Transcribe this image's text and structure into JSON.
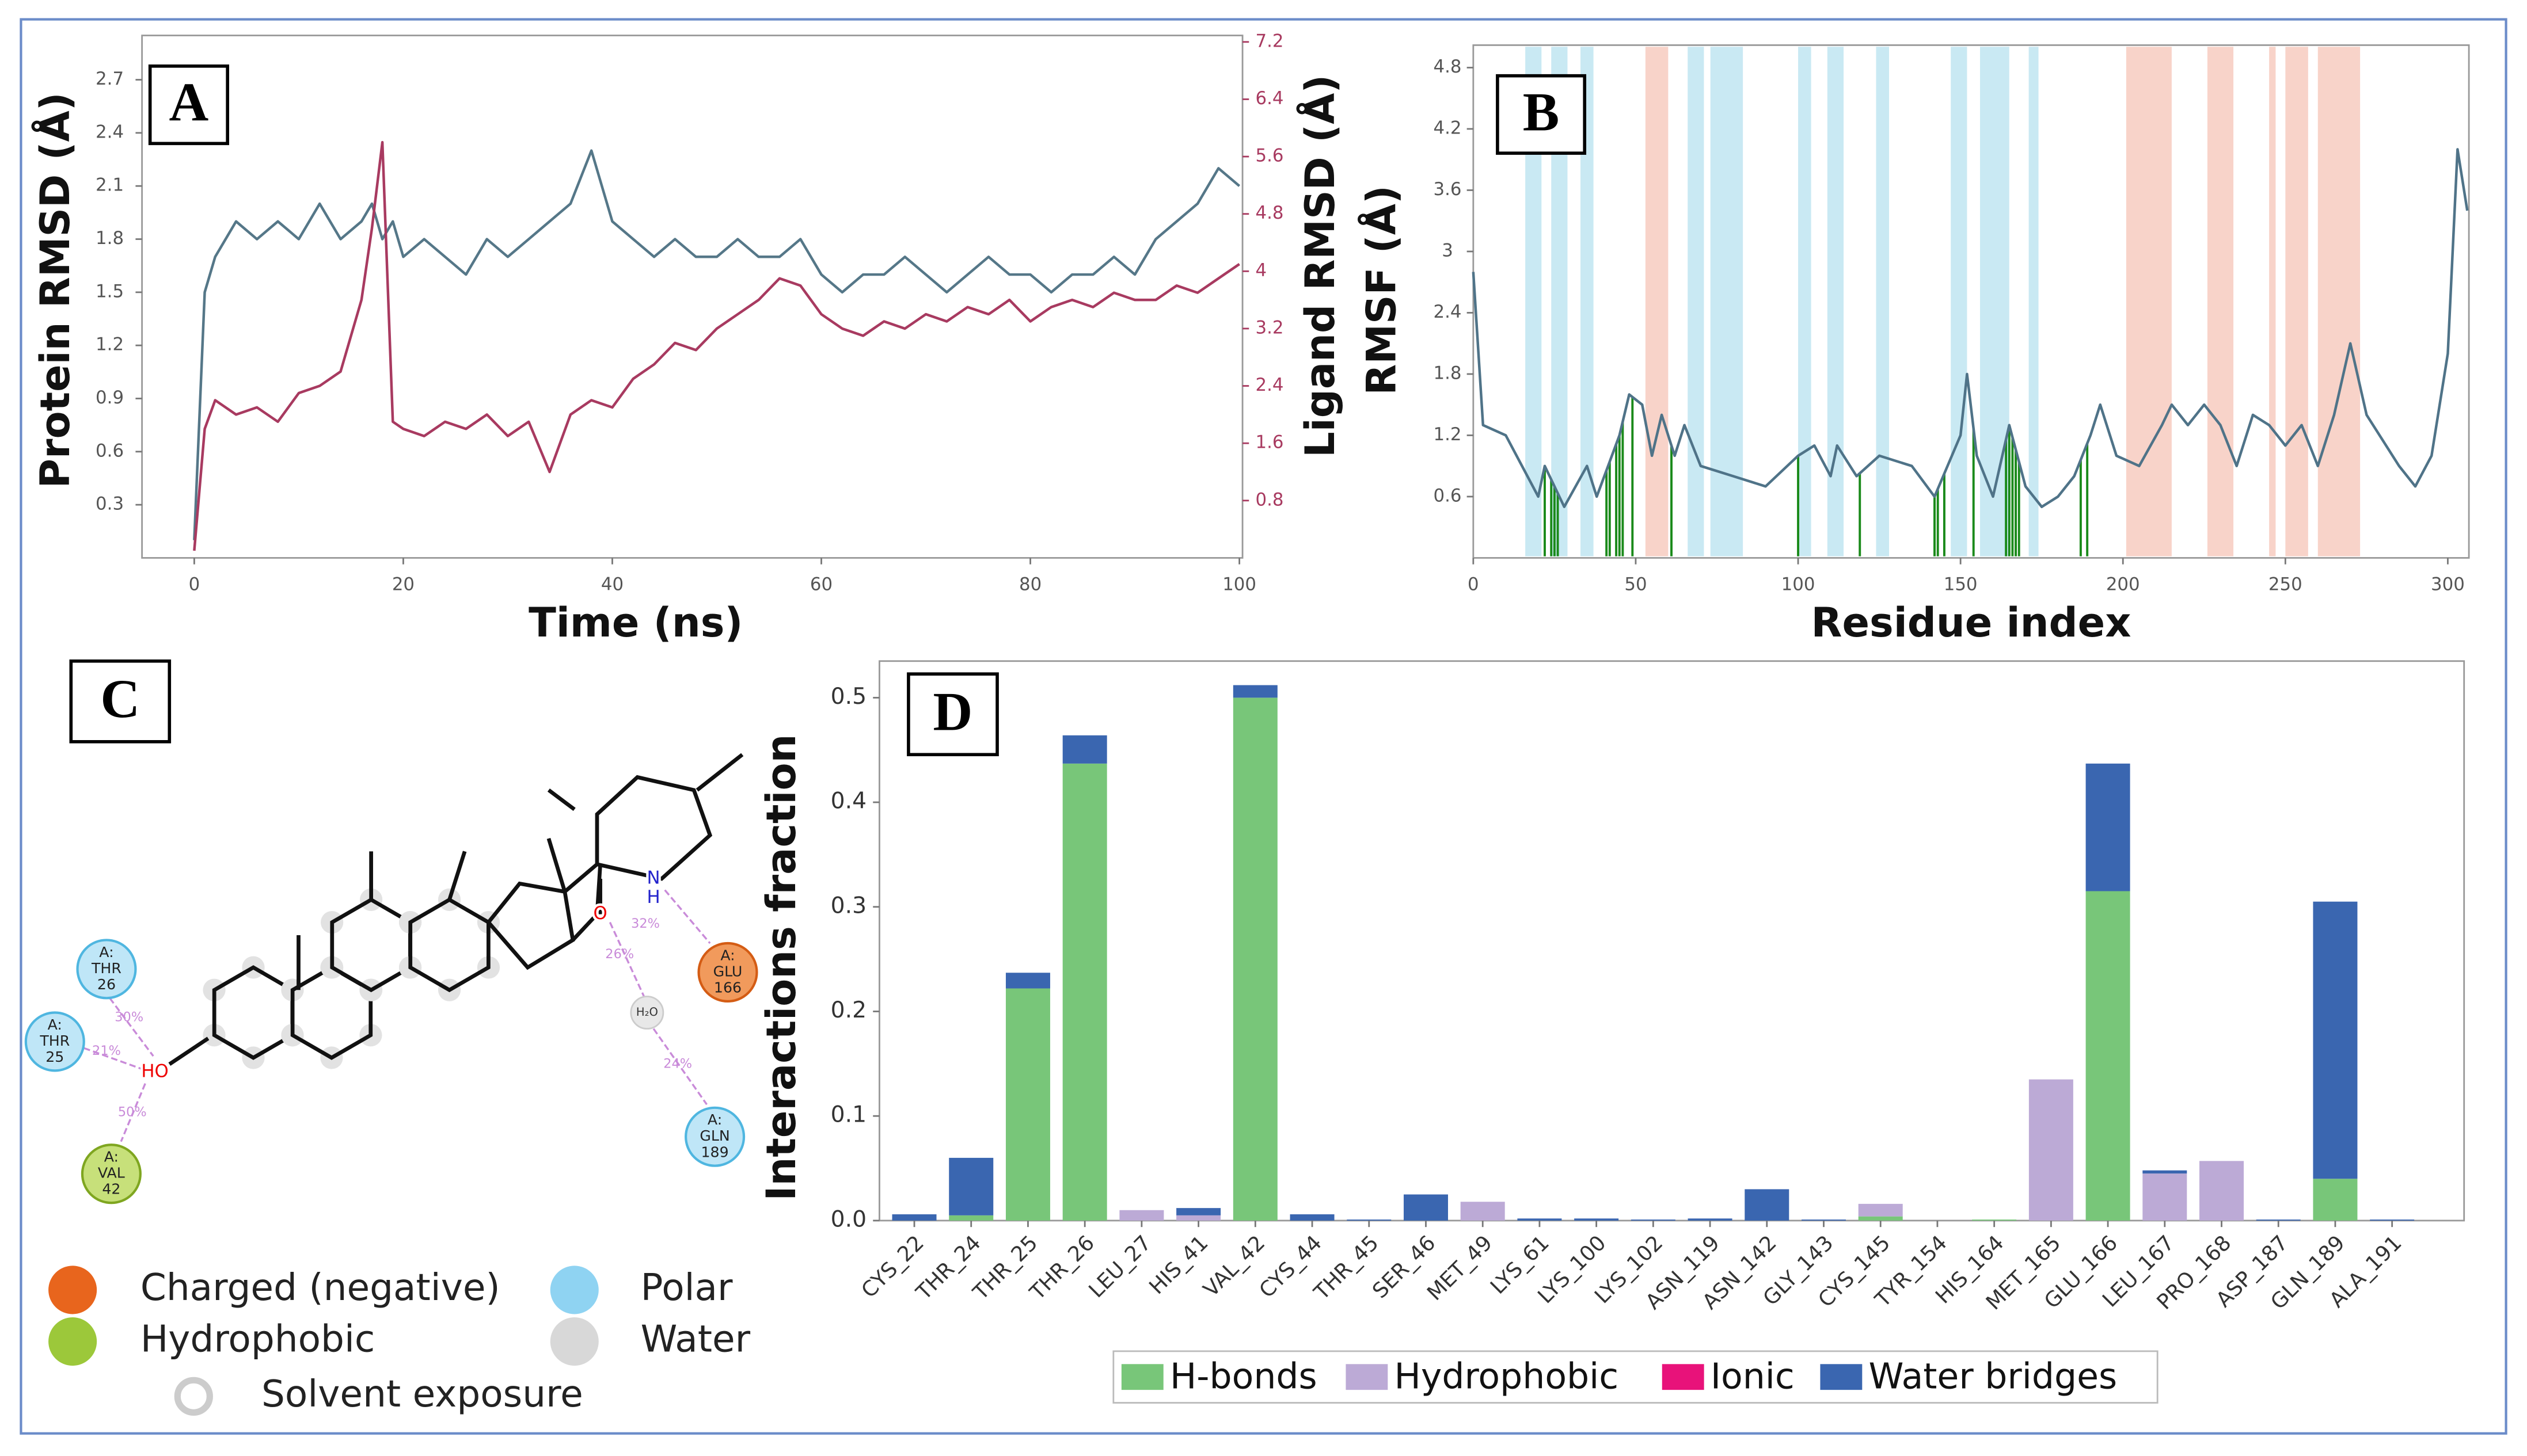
{
  "chart_data": [
    {
      "type": "line",
      "label": "A",
      "xlabel": "Time (ns)",
      "ylabel": "Protein RMSD (Å)",
      "y2label": "Ligand RMSD (Å)",
      "x": [
        0,
        1,
        2,
        4,
        6,
        8,
        10,
        12,
        14,
        16,
        17,
        18,
        19,
        20,
        22,
        24,
        26,
        28,
        30,
        32,
        34,
        36,
        38,
        40,
        42,
        44,
        46,
        48,
        50,
        52,
        54,
        56,
        58,
        60,
        62,
        64,
        66,
        68,
        70,
        72,
        74,
        76,
        78,
        80,
        82,
        84,
        86,
        88,
        90,
        92,
        94,
        96,
        98,
        100
      ],
      "series": [
        {
          "color": "#557788",
          "values": [
            0.1,
            1.5,
            1.7,
            1.9,
            1.8,
            1.9,
            1.8,
            2.0,
            1.8,
            1.9,
            2.0,
            1.8,
            1.9,
            1.7,
            1.8,
            1.7,
            1.6,
            1.8,
            1.7,
            1.8,
            1.9,
            2.0,
            2.3,
            1.9,
            1.8,
            1.7,
            1.8,
            1.7,
            1.7,
            1.8,
            1.7,
            1.7,
            1.8,
            1.6,
            1.5,
            1.6,
            1.6,
            1.7,
            1.6,
            1.5,
            1.6,
            1.7,
            1.6,
            1.6,
            1.5,
            1.6,
            1.6,
            1.7,
            1.6,
            1.8,
            1.9,
            2.0,
            2.2,
            2.1
          ]
        },
        {
          "color": "#a83a60",
          "axis": "y2",
          "values": [
            0.1,
            1.8,
            2.2,
            2.0,
            2.1,
            1.9,
            2.3,
            2.4,
            2.6,
            3.6,
            4.6,
            5.8,
            1.9,
            1.8,
            1.7,
            1.9,
            1.8,
            2.0,
            1.7,
            1.9,
            1.2,
            2.0,
            2.2,
            2.1,
            2.5,
            2.7,
            3.0,
            2.9,
            3.2,
            3.4,
            3.6,
            3.9,
            3.8,
            3.4,
            3.2,
            3.1,
            3.3,
            3.2,
            3.4,
            3.3,
            3.5,
            3.4,
            3.6,
            3.3,
            3.5,
            3.6,
            3.5,
            3.7,
            3.6,
            3.6,
            3.8,
            3.7,
            3.9,
            4.1
          ]
        }
      ],
      "xlim": [
        -5,
        100.3
      ],
      "xticks": [
        0,
        20,
        40,
        60,
        80,
        100
      ],
      "ylim": [
        0,
        2.95
      ],
      "yticks": [
        0.3,
        0.6,
        0.9,
        1.2,
        1.5,
        1.8,
        2.1,
        2.4,
        2.7
      ],
      "y2lim": [
        0,
        7.29
      ],
      "y2ticks": [
        0.8,
        1.6,
        2.4,
        3.2,
        4.0,
        4.8,
        5.6,
        6.4,
        7.2
      ]
    },
    {
      "type": "line",
      "label": "B",
      "xlabel": "Residue index",
      "ylabel": "RMSF (Å)",
      "x": [
        0,
        3,
        10,
        15,
        20,
        22,
        28,
        35,
        38,
        45,
        48,
        52,
        55,
        58,
        62,
        65,
        70,
        80,
        90,
        100,
        105,
        110,
        112,
        118,
        125,
        135,
        142,
        150,
        152,
        155,
        160,
        165,
        170,
        175,
        180,
        185,
        190,
        193,
        198,
        205,
        212,
        215,
        220,
        225,
        230,
        235,
        240,
        245,
        250,
        255,
        260,
        265,
        270,
        275,
        285,
        290,
        295,
        300,
        303,
        306
      ],
      "series": [
        {
          "color": "#4f7388",
          "values": [
            2.8,
            1.3,
            1.2,
            0.9,
            0.6,
            0.9,
            0.5,
            0.9,
            0.6,
            1.2,
            1.6,
            1.5,
            1.0,
            1.4,
            1.0,
            1.3,
            0.9,
            0.8,
            0.7,
            1.0,
            1.1,
            0.8,
            1.1,
            0.8,
            1.0,
            0.9,
            0.6,
            1.2,
            1.8,
            1.0,
            0.6,
            1.3,
            0.7,
            0.5,
            0.6,
            0.8,
            1.2,
            1.5,
            1.0,
            0.9,
            1.3,
            1.5,
            1.3,
            1.5,
            1.3,
            0.9,
            1.4,
            1.3,
            1.1,
            1.3,
            0.9,
            1.4,
            2.1,
            1.4,
            0.9,
            0.7,
            1.0,
            2.0,
            4.0,
            3.4
          ]
        }
      ],
      "xlim": [
        0,
        306.5
      ],
      "xticks": [
        0,
        50,
        100,
        150,
        200,
        250,
        300
      ],
      "ylim": [
        0,
        5.02
      ],
      "yticks": [
        0.6,
        1.2,
        1.8,
        2.4,
        3.0,
        3.6,
        4.2,
        4.8
      ],
      "helix_color": "#c9e9f3",
      "strand_color": "#f8d3c9",
      "contact_color": "#1a8a1a",
      "helix_regions": [
        [
          16,
          21
        ],
        [
          24,
          29
        ],
        [
          33,
          37
        ],
        [
          66,
          71
        ],
        [
          73,
          83
        ],
        [
          100,
          104
        ],
        [
          109,
          114
        ],
        [
          124,
          128
        ],
        [
          147,
          152
        ],
        [
          156,
          165
        ],
        [
          171,
          174
        ]
      ],
      "strand_regions": [
        [
          53,
          60
        ],
        [
          201,
          215
        ],
        [
          226,
          234
        ],
        [
          245,
          247
        ],
        [
          250,
          257
        ],
        [
          260,
          273
        ]
      ],
      "contact_residues": [
        22,
        24,
        25,
        26,
        41,
        42,
        44,
        45,
        46,
        49,
        61,
        100,
        119,
        142,
        143,
        145,
        154,
        164,
        165,
        166,
        167,
        168,
        187,
        189
      ]
    },
    {
      "type": "bar",
      "stacked": true,
      "label": "D",
      "ylabel": "Interactions fraction",
      "categories": [
        "CYS_22",
        "THR_24",
        "THR_25",
        "THR_26",
        "LEU_27",
        "HIS_41",
        "VAL_42",
        "CYS_44",
        "THR_45",
        "SER_46",
        "MET_49",
        "LYS_61",
        "LYS_100",
        "LYS_102",
        "ASN_119",
        "ASN_142",
        "GLY_143",
        "CYS_145",
        "TYR_154",
        "HIS_164",
        "MET_165",
        "GLU_166",
        "LEU_167",
        "PRO_168",
        "ASP_187",
        "GLN_189",
        "ALA_191"
      ],
      "series": [
        {
          "name": "H-bonds",
          "color": "#78c679",
          "values": [
            0,
            0.005,
            0.222,
            0.437,
            0,
            0,
            0.5,
            0,
            0,
            0,
            0,
            0,
            0,
            0,
            0,
            0,
            0,
            0.004,
            0,
            0.001,
            0,
            0.315,
            0,
            0,
            0,
            0.04,
            0
          ]
        },
        {
          "name": "Hydrophobic",
          "color": "#bcaad6",
          "values": [
            0,
            0,
            0,
            0,
            0.01,
            0.005,
            0,
            0,
            0,
            0,
            0.018,
            0,
            0,
            0,
            0,
            0,
            0,
            0.012,
            0,
            0,
            0.135,
            0,
            0.045,
            0.057,
            0,
            0,
            0
          ]
        },
        {
          "name": "Ionic",
          "color": "#e8127a",
          "values": [
            0,
            0,
            0,
            0,
            0,
            0,
            0,
            0,
            0,
            0,
            0,
            0,
            0,
            0,
            0,
            0,
            0,
            0,
            0,
            0,
            0,
            0,
            0,
            0,
            0,
            0,
            0
          ]
        },
        {
          "name": "Water bridges",
          "color": "#3a66b0",
          "values": [
            0.006,
            0.055,
            0.015,
            0.027,
            0,
            0.007,
            0.012,
            0.006,
            0.001,
            0.025,
            0,
            0.002,
            0.002,
            0.001,
            0.002,
            0.03,
            0.001,
            0,
            0,
            0,
            0,
            0.122,
            0.003,
            0,
            0.001,
            0.265,
            0.001
          ]
        }
      ],
      "ylim": [
        0,
        0.535
      ],
      "yticks": [
        {
          "value": 0,
          "label": "0.0"
        },
        0.1,
        0.2,
        0.3,
        0.4,
        0.5
      ],
      "legend": "bottom"
    }
  ],
  "diagram": {
    "label": "C",
    "atoms": [
      "HO",
      "O",
      "N",
      "H"
    ],
    "water": "H₂O",
    "residues": [
      {
        "chain": "A:",
        "name": "THR",
        "number": "26",
        "kind": "polar"
      },
      {
        "chain": "A:",
        "name": "THR",
        "number": "25",
        "kind": "polar"
      },
      {
        "chain": "A:",
        "name": "VAL",
        "number": "42",
        "kind": "hydrophobic"
      },
      {
        "chain": "A:",
        "name": "GLU",
        "number": "166",
        "kind": "charged"
      },
      {
        "chain": "A:",
        "name": "GLN",
        "number": "189",
        "kind": "polar"
      }
    ],
    "percentages": [
      "30%",
      "21%",
      "50%",
      "32%",
      "26%",
      "24%"
    ],
    "legend": [
      "Charged (negative)",
      "Hydrophobic",
      "Polar",
      "Water",
      "Solvent exposure"
    ]
  }
}
